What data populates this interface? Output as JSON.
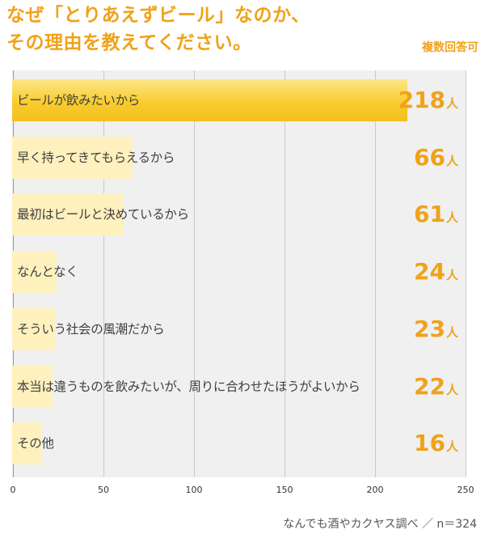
{
  "title_lines": [
    "なぜ「とりあえずビール」なのか、",
    "その理由を教えてください。"
  ],
  "note": "複数回答可",
  "source": "なんでも酒やカクヤス調べ ／ n＝324",
  "chart_data": {
    "type": "bar",
    "orientation": "horizontal",
    "categories": [
      "ビールが飲みたいから",
      "早く持ってきてもらえるから",
      "最初はビールと決めているから",
      "なんとなく",
      "そういう社会の風潮だから",
      "本当は違うものを飲みたいが、周りに合わせたほうがよいから",
      "その他"
    ],
    "values": [
      218,
      66,
      61,
      24,
      23,
      22,
      16
    ],
    "unit": "人",
    "xlim": [
      0,
      250
    ],
    "xticks": [
      0,
      50,
      100,
      150,
      200,
      250
    ],
    "grid": true,
    "colors": {
      "highlight": "#f6c52a",
      "bar": "#fff1bd",
      "label": "#f0a21a",
      "background": "#f0f0f0"
    }
  }
}
